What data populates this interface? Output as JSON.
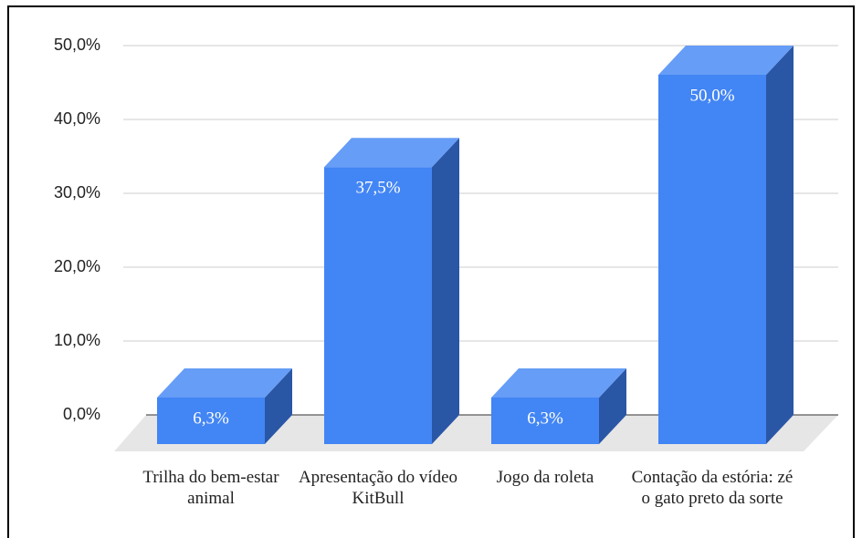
{
  "chart_data": {
    "type": "bar3d",
    "categories": [
      "Trilha do bem-estar animal",
      "Apresentação do vídeo KitBull",
      "Jogo da roleta",
      "Contação da estória: zé o gato preto da sorte"
    ],
    "values": [
      6.3,
      37.5,
      6.3,
      50
    ],
    "value_labels": [
      "6,3%",
      "37,5%",
      "6,3%",
      "50,0%"
    ],
    "colors": {
      "front": "#4285f4",
      "top": "#669df6",
      "side": "#2a56a6"
    },
    "ylim": [
      0,
      50
    ],
    "yticks": [
      {
        "value": 0,
        "label": "0,0%"
      },
      {
        "value": 10,
        "label": "10,0%"
      },
      {
        "value": 20,
        "label": "20,0%"
      },
      {
        "value": 30,
        "label": "30,0%"
      },
      {
        "value": 40,
        "label": "40,0%"
      },
      {
        "value": 50,
        "label": "50,0%"
      }
    ],
    "grid": true
  }
}
